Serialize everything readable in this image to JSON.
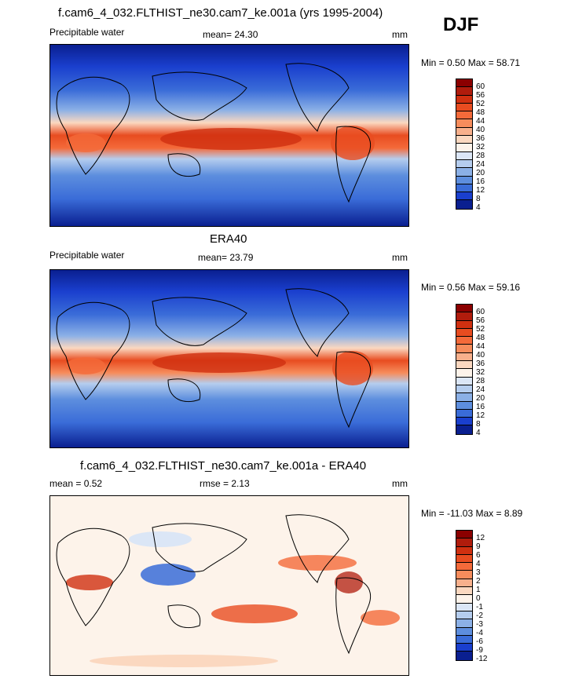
{
  "season": "DJF",
  "panels": [
    {
      "title": "f.cam6_4_032.FLTHIST_ne30.cam7_ke.001a (yrs 1995-2004)",
      "left_label": "Precipitable water",
      "center_label": "mean=  24.30",
      "units": "mm",
      "minmax": "Min =   0.50 Max =  58.71",
      "colorbar_ticks": [
        "60",
        "56",
        "52",
        "48",
        "44",
        "40",
        "36",
        "32",
        "28",
        "24",
        "20",
        "16",
        "12",
        "8",
        "4"
      ]
    },
    {
      "title": "ERA40",
      "left_label": "Precipitable water",
      "center_label": "mean=  23.79",
      "units": "mm",
      "minmax": "Min =   0.56 Max =  59.16",
      "colorbar_ticks": [
        "60",
        "56",
        "52",
        "48",
        "44",
        "40",
        "36",
        "32",
        "28",
        "24",
        "20",
        "16",
        "12",
        "8",
        "4"
      ]
    },
    {
      "title": "f.cam6_4_032.FLTHIST_ne30.cam7_ke.001a - ERA40",
      "left_label": "mean =   0.52",
      "center_label": "rmse =   2.13",
      "units": "mm",
      "minmax": "Min = -11.03 Max =   8.89",
      "colorbar_ticks": [
        "12",
        "9",
        "6",
        "4",
        "3",
        "2",
        "1",
        "0",
        "-1",
        "-2",
        "-3",
        "-4",
        "-6",
        "-9",
        "-12"
      ]
    }
  ],
  "colors": {
    "seq": [
      "#8b0000",
      "#b01c0c",
      "#d03010",
      "#e84c20",
      "#f46a3a",
      "#f68c5c",
      "#f8b08c",
      "#fbd8c0",
      "#fdf3ea",
      "#dbe6f6",
      "#b5cdee",
      "#8bb0e6",
      "#5d8ede",
      "#3a6cd8",
      "#1a3fce",
      "#0a1f90"
    ],
    "div": [
      "#8b0000",
      "#b01c0c",
      "#d03010",
      "#e84c20",
      "#f46a3a",
      "#f68c5c",
      "#f8b08c",
      "#fbd8c0",
      "#fdf3ea",
      "#dbe6f6",
      "#b5cdee",
      "#8bb0e6",
      "#5d8ede",
      "#3a6cd8",
      "#1a3fce",
      "#0a1f90"
    ]
  },
  "chart_data": [
    {
      "type": "heatmap",
      "title": "f.cam6_4_032.FLTHIST_ne30.cam7_ke.001a (yrs 1995-2004)",
      "variable": "Precipitable water",
      "units": "mm",
      "mean": 24.3,
      "min": 0.5,
      "max": 58.71,
      "levels": [
        4,
        8,
        12,
        16,
        20,
        24,
        28,
        32,
        36,
        40,
        44,
        48,
        52,
        56,
        60
      ]
    },
    {
      "type": "heatmap",
      "title": "ERA40",
      "variable": "Precipitable water",
      "units": "mm",
      "mean": 23.79,
      "min": 0.56,
      "max": 59.16,
      "levels": [
        4,
        8,
        12,
        16,
        20,
        24,
        28,
        32,
        36,
        40,
        44,
        48,
        52,
        56,
        60
      ]
    },
    {
      "type": "heatmap",
      "title": "f.cam6_4_032.FLTHIST_ne30.cam7_ke.001a - ERA40",
      "units": "mm",
      "mean": 0.52,
      "rmse": 2.13,
      "min": -11.03,
      "max": 8.89,
      "levels": [
        -12,
        -9,
        -6,
        -4,
        -3,
        -2,
        -1,
        0,
        1,
        2,
        3,
        4,
        6,
        9,
        12
      ]
    }
  ]
}
